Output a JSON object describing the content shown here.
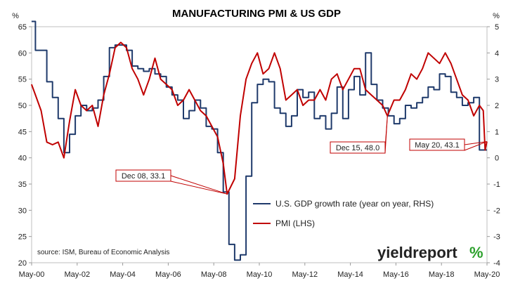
{
  "chart_data": {
    "type": "line",
    "title": "MANUFACTURING PMI & US GDP",
    "left_axis": {
      "unit": "%",
      "range": [
        20,
        65
      ],
      "ticks": [
        20,
        25,
        30,
        35,
        40,
        45,
        50,
        55,
        60,
        65
      ]
    },
    "right_axis": {
      "unit": "%",
      "range": [
        -4,
        5
      ],
      "ticks": [
        -4,
        -3,
        -2,
        -1,
        0,
        1,
        2,
        3,
        4,
        5
      ]
    },
    "x_labels": [
      "May-00",
      "May-02",
      "May-04",
      "May-06",
      "May-08",
      "May-10",
      "May-12",
      "May-14",
      "May-16",
      "May-18",
      "May-20"
    ],
    "x_range": [
      2000.333,
      2020.333
    ],
    "grid": false,
    "series": [
      {
        "name": "U.S. GDP growth rate (year on year, RHS)",
        "axis": "right",
        "color": "#1f3a6b",
        "points": [
          [
            2000.33,
            5.2
          ],
          [
            2000.5,
            4.1
          ],
          [
            2000.75,
            4.1
          ],
          [
            2001.0,
            2.9
          ],
          [
            2001.25,
            2.3
          ],
          [
            2001.5,
            1.5
          ],
          [
            2001.75,
            0.2
          ],
          [
            2002.0,
            0.9
          ],
          [
            2002.25,
            1.6
          ],
          [
            2002.5,
            2.0
          ],
          [
            2002.75,
            1.8
          ],
          [
            2003.0,
            1.9
          ],
          [
            2003.25,
            2.2
          ],
          [
            2003.5,
            3.1
          ],
          [
            2003.75,
            4.2
          ],
          [
            2004.0,
            4.3
          ],
          [
            2004.25,
            4.3
          ],
          [
            2004.5,
            4.1
          ],
          [
            2004.75,
            3.5
          ],
          [
            2005.0,
            3.4
          ],
          [
            2005.25,
            3.3
          ],
          [
            2005.5,
            3.4
          ],
          [
            2005.75,
            3.2
          ],
          [
            2006.0,
            3.1
          ],
          [
            2006.25,
            2.7
          ],
          [
            2006.5,
            2.4
          ],
          [
            2006.75,
            2.2
          ],
          [
            2007.0,
            1.5
          ],
          [
            2007.25,
            1.8
          ],
          [
            2007.5,
            2.2
          ],
          [
            2007.75,
            1.9
          ],
          [
            2008.0,
            1.2
          ],
          [
            2008.25,
            1.1
          ],
          [
            2008.5,
            0.2
          ],
          [
            2008.75,
            -1.3
          ],
          [
            2009.0,
            -3.3
          ],
          [
            2009.25,
            -3.9
          ],
          [
            2009.5,
            -3.7
          ],
          [
            2009.75,
            -0.7
          ],
          [
            2010.0,
            2.1
          ],
          [
            2010.25,
            2.8
          ],
          [
            2010.5,
            3.0
          ],
          [
            2010.75,
            2.9
          ],
          [
            2011.0,
            1.9
          ],
          [
            2011.25,
            1.7
          ],
          [
            2011.5,
            1.2
          ],
          [
            2011.75,
            1.6
          ],
          [
            2012.0,
            2.6
          ],
          [
            2012.25,
            2.3
          ],
          [
            2012.5,
            2.5
          ],
          [
            2012.75,
            1.5
          ],
          [
            2013.0,
            1.6
          ],
          [
            2013.25,
            1.1
          ],
          [
            2013.5,
            1.7
          ],
          [
            2013.75,
            2.7
          ],
          [
            2014.0,
            1.5
          ],
          [
            2014.25,
            2.6
          ],
          [
            2014.5,
            3.1
          ],
          [
            2014.75,
            2.4
          ],
          [
            2015.0,
            4.0
          ],
          [
            2015.25,
            2.8
          ],
          [
            2015.5,
            2.2
          ],
          [
            2015.75,
            1.9
          ],
          [
            2016.0,
            1.6
          ],
          [
            2016.25,
            1.3
          ],
          [
            2016.5,
            1.5
          ],
          [
            2016.75,
            2.0
          ],
          [
            2017.0,
            1.9
          ],
          [
            2017.25,
            2.1
          ],
          [
            2017.5,
            2.3
          ],
          [
            2017.75,
            2.7
          ],
          [
            2018.0,
            2.6
          ],
          [
            2018.25,
            3.2
          ],
          [
            2018.5,
            3.1
          ],
          [
            2018.75,
            2.5
          ],
          [
            2019.0,
            2.3
          ],
          [
            2019.25,
            2.0
          ],
          [
            2019.5,
            2.1
          ],
          [
            2019.75,
            2.3
          ],
          [
            2020.0,
            0.3
          ],
          [
            2020.25,
            0.3
          ]
        ]
      },
      {
        "name": "PMI (LHS)",
        "axis": "left",
        "color": "#c00000",
        "points": [
          [
            2000.33,
            54
          ],
          [
            2000.5,
            52
          ],
          [
            2000.75,
            49
          ],
          [
            2001.0,
            43
          ],
          [
            2001.25,
            42.5
          ],
          [
            2001.5,
            43
          ],
          [
            2001.75,
            40
          ],
          [
            2002.0,
            47
          ],
          [
            2002.25,
            53
          ],
          [
            2002.5,
            50
          ],
          [
            2002.75,
            49
          ],
          [
            2003.0,
            50
          ],
          [
            2003.25,
            46
          ],
          [
            2003.5,
            52
          ],
          [
            2003.75,
            56
          ],
          [
            2004.0,
            61
          ],
          [
            2004.25,
            62
          ],
          [
            2004.5,
            61
          ],
          [
            2004.75,
            57
          ],
          [
            2005.0,
            55
          ],
          [
            2005.25,
            52
          ],
          [
            2005.5,
            55
          ],
          [
            2005.75,
            59
          ],
          [
            2006.0,
            55
          ],
          [
            2006.25,
            54
          ],
          [
            2006.5,
            53
          ],
          [
            2006.75,
            50
          ],
          [
            2007.0,
            51
          ],
          [
            2007.25,
            53
          ],
          [
            2007.5,
            51
          ],
          [
            2007.75,
            49
          ],
          [
            2008.0,
            48
          ],
          [
            2008.25,
            46
          ],
          [
            2008.5,
            44
          ],
          [
            2008.75,
            38.9
          ],
          [
            2008.92,
            33.1
          ],
          [
            2009.25,
            36
          ],
          [
            2009.5,
            48
          ],
          [
            2009.75,
            55
          ],
          [
            2010.0,
            58
          ],
          [
            2010.25,
            60
          ],
          [
            2010.5,
            56
          ],
          [
            2010.75,
            57
          ],
          [
            2011.0,
            60
          ],
          [
            2011.25,
            57
          ],
          [
            2011.5,
            51
          ],
          [
            2011.75,
            52
          ],
          [
            2012.0,
            53
          ],
          [
            2012.25,
            50
          ],
          [
            2012.5,
            51
          ],
          [
            2012.75,
            51
          ],
          [
            2013.0,
            53
          ],
          [
            2013.25,
            51
          ],
          [
            2013.5,
            55
          ],
          [
            2013.75,
            56
          ],
          [
            2014.0,
            53
          ],
          [
            2014.25,
            55
          ],
          [
            2014.5,
            57
          ],
          [
            2014.75,
            57
          ],
          [
            2015.0,
            53
          ],
          [
            2015.25,
            52
          ],
          [
            2015.5,
            51
          ],
          [
            2015.75,
            50
          ],
          [
            2015.96,
            48.0
          ],
          [
            2016.25,
            51
          ],
          [
            2016.5,
            51
          ],
          [
            2016.75,
            53
          ],
          [
            2017.0,
            56
          ],
          [
            2017.25,
            55
          ],
          [
            2017.5,
            57
          ],
          [
            2017.75,
            60
          ],
          [
            2018.0,
            59
          ],
          [
            2018.25,
            58
          ],
          [
            2018.5,
            60
          ],
          [
            2018.75,
            58
          ],
          [
            2019.0,
            55
          ],
          [
            2019.25,
            52
          ],
          [
            2019.5,
            51
          ],
          [
            2019.75,
            48
          ],
          [
            2020.0,
            50
          ],
          [
            2020.17,
            49
          ],
          [
            2020.25,
            41.5
          ],
          [
            2020.33,
            43.1
          ]
        ]
      }
    ],
    "annotations": [
      {
        "label": "Dec 08, 33.1",
        "date": 2008.92,
        "value": 33.1
      },
      {
        "label": "Dec 15, 48.0",
        "date": 2015.96,
        "value": 48.0
      },
      {
        "label": "May 20, 43.1",
        "date": 2020.33,
        "value": 43.1
      }
    ],
    "source": "source: ISM, Bureau of Economic Analysis"
  },
  "brand": {
    "name": "yieldreport",
    "symbol": "%"
  }
}
